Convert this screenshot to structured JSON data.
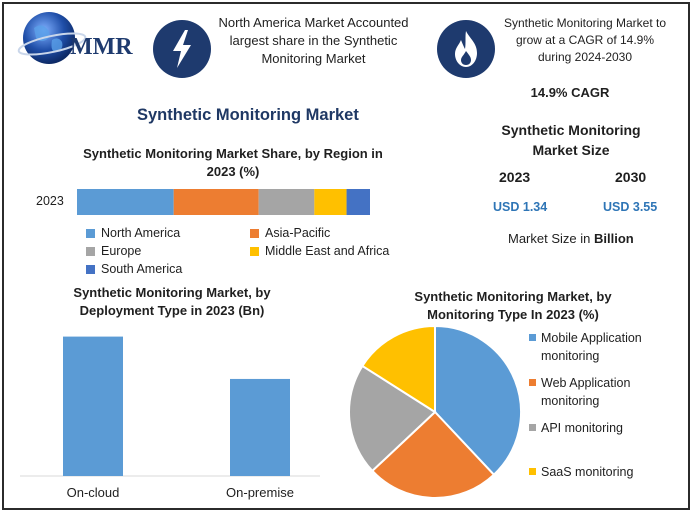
{
  "logo": {
    "text": "MMR"
  },
  "header": {
    "na_text": "North America Market Accounted largest share in the Synthetic Monitoring Market",
    "cagr_text": "Synthetic Monitoring Market to grow at a CAGR of 14.9% during 2024-2030"
  },
  "page_title": "Synthetic Monitoring Market",
  "cagr_label": "14.9% CAGR",
  "market_size": {
    "title": "Synthetic Monitoring Market Size",
    "year1": "2023",
    "year2": "2030",
    "value1": "USD 1.34",
    "value2": "USD 3.55",
    "note_prefix": "Market Size in ",
    "note_bold": "Billion"
  },
  "colors": {
    "blue": "#5b9bd5",
    "orange": "#ed7d31",
    "gray": "#a5a5a5",
    "yellow": "#ffc000",
    "darkblue": "#4472c4",
    "navy": "#1e3a6e"
  },
  "chart_data": [
    {
      "type": "bar",
      "orientation": "horizontal-stacked",
      "title": "Synthetic Monitoring Market Share, by Region in 2023 (%)",
      "categories": [
        "2023"
      ],
      "series": [
        {
          "name": "North America",
          "values": [
            33
          ]
        },
        {
          "name": "Asia-Pacific",
          "values": [
            29
          ]
        },
        {
          "name": "Europe",
          "values": [
            19
          ]
        },
        {
          "name": "Middle East and Africa",
          "values": [
            11
          ]
        },
        {
          "name": "South America",
          "values": [
            8
          ]
        }
      ],
      "legend": "bottom"
    },
    {
      "type": "bar",
      "title": "Synthetic Monitoring Market, by Deployment Type in 2023 (Bn)",
      "categories": [
        "On-cloud",
        "On-premise"
      ],
      "values": [
        0.79,
        0.55
      ],
      "ylim": [
        0,
        0.85
      ]
    },
    {
      "type": "pie",
      "title": "Synthetic Monitoring Market, by Monitoring Type In 2023 (%)",
      "categories": [
        "Mobile Application monitoring",
        "Web Application monitoring",
        "API monitoring",
        "SaaS monitoring"
      ],
      "values": [
        38,
        25,
        21,
        16
      ],
      "legend": "right"
    }
  ]
}
